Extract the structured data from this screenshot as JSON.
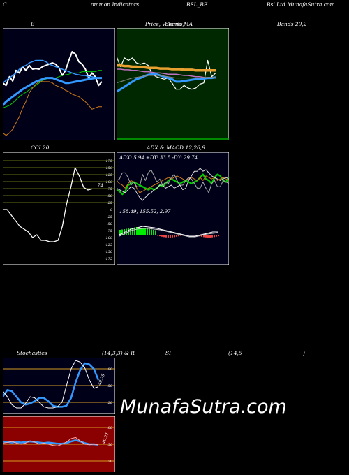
{
  "header": {
    "left": "C",
    "indicators": "ommon  Indicators",
    "symbol": "BSL_BE",
    "right": "Bsl Ltd MunafaSutra.com"
  },
  "titles": {
    "bollinger_left": "B",
    "price_a": "Price,",
    "price_b": "Volume",
    "price_c": "Charts,",
    "price_d": "MA",
    "bands": "Bands 20,2",
    "cci": "CCI 20",
    "adx_macd": "ADX  & MACD 12,26,9",
    "stoch_left": "Stochastics",
    "stoch_mid": "(14,3,3) & R",
    "rsi_a": "SI",
    "rsi_b": "(14,5",
    "rsi_c": ")"
  },
  "watermark": "MunafaSutra.com",
  "colors": {
    "navy_bg": "#000018",
    "price_bg": "#002800",
    "cci_bg": "#000000",
    "rsi_bg": "#8b0000",
    "blue_line": "#3399ff",
    "orange_line": "#d07a1a",
    "green_line": "#00cc00",
    "white_line": "#ffffff"
  },
  "chart_data": [
    {
      "type": "line",
      "title": "Bollinger Bands 20,2",
      "series": [
        {
          "name": "",
          "values": [
            88,
            92,
            78,
            85,
            68,
            72,
            62,
            68,
            60,
            66,
            65,
            66,
            62,
            60,
            58,
            56,
            58,
            64,
            76,
            68,
            52,
            38,
            42,
            54,
            58,
            66,
            80,
            72,
            78,
            92,
            86
          ]
        },
        {
          "name": "",
          "values": [
            128,
            126,
            124,
            120,
            115,
            110,
            106,
            103,
            99,
            95,
            92,
            88,
            84,
            82,
            80,
            80,
            80,
            78,
            76,
            75,
            74,
            72,
            72,
            72,
            70,
            70,
            70,
            70,
            70,
            68,
            68
          ]
        },
        {
          "name": "",
          "values": [
            124,
            118,
            114,
            110,
            106,
            102,
            98,
            95,
            92,
            89,
            86,
            84,
            82,
            80,
            80,
            80,
            82,
            84,
            86,
            88,
            88,
            87,
            86,
            85,
            84,
            83,
            82,
            81,
            80,
            80,
            80
          ]
        },
        {
          "name": "",
          "values": [
            88,
            84,
            80,
            76,
            72,
            66,
            62,
            60,
            56,
            54,
            52,
            52,
            52,
            54,
            58,
            60,
            62,
            64,
            66,
            68,
            70,
            72,
            74,
            75,
            76,
            76,
            78,
            78,
            79,
            80,
            80
          ]
        },
        {
          "name": "",
          "values": [
            168,
            172,
            168,
            162,
            152,
            142,
            128,
            118,
            104,
            96,
            90,
            86,
            86,
            86,
            86,
            88,
            92,
            94,
            96,
            100,
            102,
            106,
            108,
            110,
            114,
            118,
            124,
            130,
            128,
            126,
            126
          ]
        }
      ]
    },
    {
      "type": "line",
      "title": "Price, Volume, Charts, MA",
      "series": [
        {
          "name": "",
          "values": [
            46,
            62,
            48,
            52,
            48,
            56,
            58,
            56,
            60,
            74,
            78,
            80,
            82,
            80,
            88,
            98,
            98,
            92,
            96,
            98,
            96,
            90,
            88,
            52,
            78,
            72
          ]
        },
        {
          "name": "",
          "values": [
            60,
            60,
            61,
            61,
            62,
            62,
            63,
            63,
            64,
            64,
            64,
            65,
            65,
            65,
            66,
            66,
            66,
            67,
            67,
            67,
            68,
            68,
            68,
            68,
            68,
            68
          ]
        },
        {
          "name": "",
          "values": [
            66,
            66,
            67,
            67,
            68,
            68,
            69,
            70,
            70,
            71,
            72,
            72,
            73,
            74,
            74,
            74,
            75,
            76,
            76,
            77,
            78,
            78,
            79,
            80,
            80,
            80
          ]
        },
        {
          "name": "",
          "values": [
            102,
            98,
            94,
            90,
            86,
            82,
            80,
            77,
            75,
            74,
            74,
            76,
            78,
            80,
            82,
            86,
            86,
            85,
            84,
            83,
            82,
            82,
            81,
            80,
            80,
            79
          ]
        },
        {
          "name": "",
          "values": [
            88,
            86,
            84,
            82,
            80,
            79,
            78,
            77,
            76,
            76,
            76,
            76,
            77,
            78,
            79,
            80,
            80,
            80,
            80,
            80,
            80,
            80,
            79,
            79,
            79,
            79
          ]
        }
      ]
    },
    {
      "type": "line",
      "title": "CCI 20",
      "y_ticks": [
        175,
        150,
        125,
        100,
        75,
        50,
        25,
        0,
        -25,
        -50,
        -75,
        -100,
        -125,
        -150,
        -175
      ],
      "value_label": "74",
      "series": [
        {
          "name": "",
          "values": [
            0,
            0,
            -20,
            -40,
            -60,
            -70,
            -80,
            -100,
            -90,
            -110,
            -110,
            -115,
            -115,
            -110,
            -60,
            20,
            80,
            150,
            120,
            80,
            70,
            74
          ]
        }
      ]
    },
    {
      "type": "line",
      "title": "ADX & MACD 12,26,9",
      "adx_label": "ADX: 5.94  +DY: 33.5 -DY: 29.74",
      "macd_label": "158.49,  155.52,  2.97",
      "series": [
        {
          "name": "",
          "values": [
            36,
            38,
            42,
            38,
            30,
            28,
            26,
            28,
            30,
            32,
            34,
            36,
            34,
            36,
            34,
            30,
            32,
            28,
            24,
            22,
            24,
            26,
            28,
            26,
            24,
            26,
            28,
            26,
            24,
            20,
            16,
            22,
            24,
            28,
            20,
            16,
            18,
            24,
            26,
            20
          ]
        },
        {
          "name": "",
          "values": [
            24,
            28,
            30,
            34,
            28,
            24,
            26,
            34,
            40,
            38,
            36,
            34,
            32,
            30,
            28,
            26,
            24,
            22,
            20,
            22,
            20,
            18,
            20,
            22,
            24,
            22,
            20,
            22,
            24,
            20,
            24,
            18,
            20,
            22,
            20,
            24,
            22,
            20,
            22,
            24
          ]
        },
        {
          "name": "",
          "values": [
            24,
            22,
            14,
            14,
            20,
            30,
            26,
            32,
            32,
            16,
            24,
            14,
            10,
            18,
            26,
            22,
            30,
            26,
            28,
            20,
            16,
            24,
            30,
            30,
            24,
            20,
            22,
            28,
            34,
            34,
            26,
            34,
            40,
            28,
            24,
            32,
            32,
            24,
            26,
            28
          ]
        },
        {
          "name": "",
          "values": [
            34,
            36,
            38,
            40,
            36,
            32,
            34,
            40,
            46,
            50,
            46,
            42,
            40,
            36,
            34,
            30,
            30,
            34,
            32,
            30,
            34,
            32,
            30,
            36,
            34,
            24,
            18,
            12,
            12,
            8,
            12,
            10,
            14,
            18,
            20,
            22,
            24,
            22,
            20,
            22
          ]
        }
      ]
    },
    {
      "type": "line",
      "title": "Stochastics (14,3,3)",
      "y_ticks": [
        80,
        50,
        20
      ],
      "value_label": "48.75",
      "series": [
        {
          "name": "",
          "values": [
            30,
            42,
            40,
            30,
            20,
            16,
            18,
            22,
            28,
            28,
            22,
            14,
            12,
            12,
            14,
            28,
            56,
            78,
            90,
            88,
            80,
            60
          ]
        },
        {
          "name": "",
          "values": [
            40,
            30,
            16,
            10,
            10,
            18,
            30,
            28,
            20,
            12,
            10,
            10,
            12,
            20,
            50,
            80,
            95,
            92,
            82,
            60,
            45,
            48
          ]
        }
      ]
    },
    {
      "type": "line",
      "title": "RSI (14,5)",
      "y_ticks": [
        80,
        50,
        20
      ],
      "value_label": "49.21",
      "series": [
        {
          "name": "",
          "values": [
            55,
            54,
            53,
            54,
            53,
            54,
            55,
            54,
            53,
            52,
            53,
            52,
            51,
            51,
            52,
            55,
            57,
            55,
            52,
            50,
            50,
            49
          ]
        },
        {
          "name": "",
          "values": [
            52,
            53,
            55,
            52,
            50,
            52,
            56,
            54,
            50,
            52,
            50,
            48,
            47,
            50,
            54,
            60,
            62,
            56,
            50,
            49,
            50,
            49
          ]
        }
      ]
    }
  ]
}
